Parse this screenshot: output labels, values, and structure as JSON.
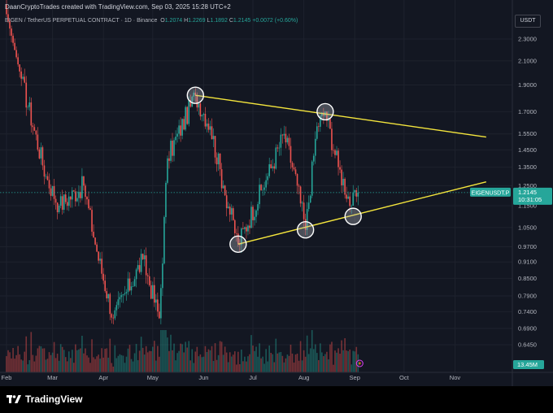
{
  "header": {
    "creator_line": "DaanCryptoTrades created with TradingView.com, Sep 03, 2025 15:28 UTC+2"
  },
  "symbol_bar": {
    "title": "EIGEN / TetherUS PERPETUAL CONTRACT · 1D · Binance",
    "o_label": "O",
    "o_value": "1.2074",
    "h_label": "H",
    "h_value": "1.2269",
    "l_label": "L",
    "l_value": "1.1892",
    "c_label": "C",
    "c_value": "1.2145",
    "change": "+0.0072 (+0.60%)"
  },
  "currency_button": "USDT",
  "footer": {
    "brand": "TradingView"
  },
  "price_tag": {
    "symbol": "EIGENUSDT.P",
    "price": "1.2145",
    "countdown": "10:31:05"
  },
  "volume_tag": "13.45M",
  "colors": {
    "background": "#131722",
    "up": "#26a69a",
    "down": "#ef5350",
    "trendline": "#f5e63d",
    "price_tag": "#26a69a",
    "circle_fill": "#b2b5be"
  },
  "chart_data": {
    "type": "candlestick",
    "interval": "1D",
    "x_tick_labels": [
      "Feb",
      "Mar",
      "Apr",
      "May",
      "Jun",
      "Jul",
      "Aug",
      "Sep",
      "Oct",
      "Nov"
    ],
    "x_tick_dates": [
      "2025-02-01",
      "2025-03-01",
      "2025-04-01",
      "2025-05-01",
      "2025-06-01",
      "2025-07-01",
      "2025-08-01",
      "2025-09-01",
      "2025-10-01",
      "2025-11-01"
    ],
    "y_tick_labels": [
      "2.3000",
      "2.1000",
      "1.9000",
      "1.7000",
      "1.5500",
      "1.4500",
      "1.3500",
      "1.2500",
      "1.1500",
      "1.0500",
      "0.9700",
      "0.9100",
      "0.8500",
      "0.7900",
      "0.7400",
      "0.6900",
      "0.6450"
    ],
    "y_scale": "log",
    "last_price": 1.2145,
    "last_volume": "13.45M",
    "key_points": [
      {
        "date": "2025-02-01",
        "price": 2.55
      },
      {
        "date": "2025-02-10",
        "price": 1.95
      },
      {
        "date": "2025-02-25",
        "price": 1.3
      },
      {
        "date": "2025-03-05",
        "price": 1.15
      },
      {
        "date": "2025-03-20",
        "price": 1.25
      },
      {
        "date": "2025-03-28",
        "price": 0.95
      },
      {
        "date": "2025-04-07",
        "price": 0.72
      },
      {
        "date": "2025-04-25",
        "price": 0.92
      },
      {
        "date": "2025-05-05",
        "price": 0.72
      },
      {
        "date": "2025-05-10",
        "price": 1.4
      },
      {
        "date": "2025-05-27",
        "price": 1.82
      },
      {
        "date": "2025-06-05",
        "price": 1.6
      },
      {
        "date": "2025-06-13",
        "price": 1.25
      },
      {
        "date": "2025-06-22",
        "price": 0.98
      },
      {
        "date": "2025-07-10",
        "price": 1.3
      },
      {
        "date": "2025-07-20",
        "price": 1.55
      },
      {
        "date": "2025-07-28",
        "price": 1.25
      },
      {
        "date": "2025-08-02",
        "price": 1.04
      },
      {
        "date": "2025-08-09",
        "price": 1.6
      },
      {
        "date": "2025-08-14",
        "price": 1.7
      },
      {
        "date": "2025-08-22",
        "price": 1.35
      },
      {
        "date": "2025-08-30",
        "price": 1.15
      },
      {
        "date": "2025-09-03",
        "price": 1.2145
      }
    ],
    "trendlines": [
      {
        "name": "upper",
        "from": {
          "date": "2025-05-27",
          "price": 1.82
        },
        "to": {
          "date": "2025-11-20",
          "price": 1.53
        }
      },
      {
        "name": "lower",
        "from": {
          "date": "2025-06-22",
          "price": 0.98
        },
        "to": {
          "date": "2025-11-20",
          "price": 1.27
        }
      }
    ],
    "marked_points": [
      {
        "date": "2025-05-27",
        "price": 1.82
      },
      {
        "date": "2025-06-22",
        "price": 0.98
      },
      {
        "date": "2025-08-02",
        "price": 1.04
      },
      {
        "date": "2025-08-14",
        "price": 1.7
      },
      {
        "date": "2025-08-31",
        "price": 1.1
      }
    ]
  }
}
